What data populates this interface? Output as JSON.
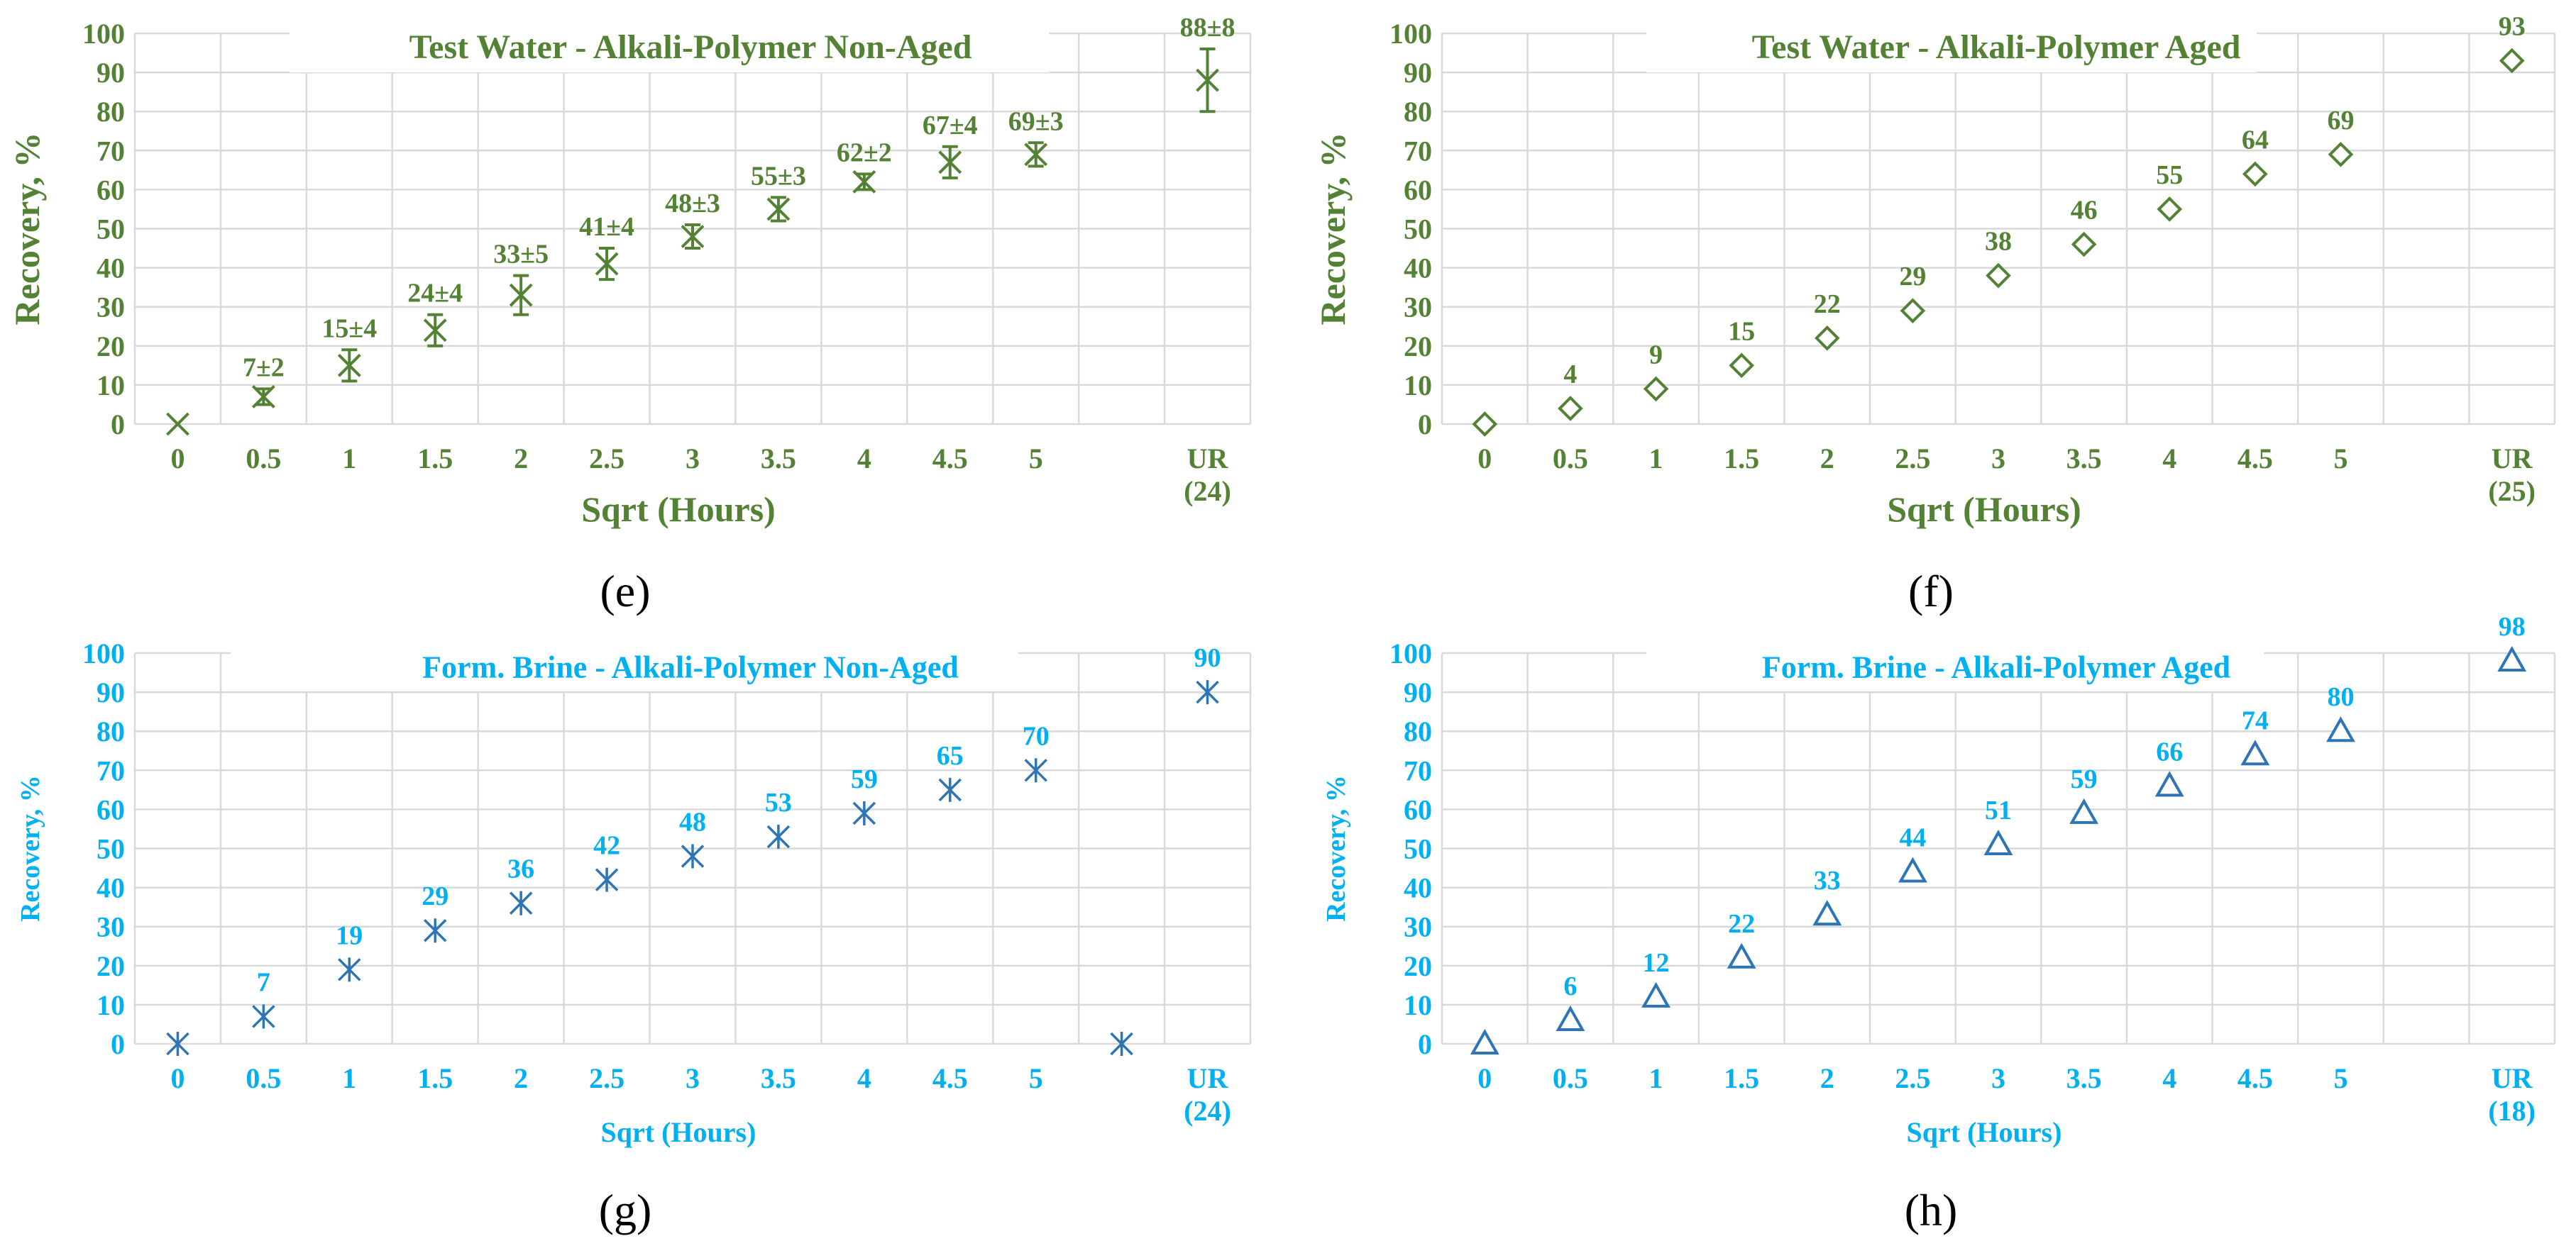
{
  "colors": {
    "green": "#548235",
    "blue": "#00B0F0",
    "blue_marker": "#2E75B6",
    "grid": "#D9D9D9"
  },
  "chart_data": [
    {
      "id": "e",
      "panel_label": "(e)",
      "type": "scatter",
      "title": "Test Water - Alkali-Polymer Non-Aged",
      "xlabel": "Sqrt (Hours)",
      "ylabel": "Recovery, %",
      "ylim": [
        0,
        100
      ],
      "ytick_step": 10,
      "color": "green",
      "marker": "x-errorbar",
      "categories": [
        "0",
        "0.5",
        "1",
        "1.5",
        "2",
        "2.5",
        "3",
        "3.5",
        "4",
        "4.5",
        "5",
        "",
        "UR (24)"
      ],
      "points": [
        {
          "cat": 0,
          "y": 0,
          "err": 0,
          "label": ""
        },
        {
          "cat": 1,
          "y": 7,
          "err": 2,
          "label": "7±2"
        },
        {
          "cat": 2,
          "y": 15,
          "err": 4,
          "label": "15±4"
        },
        {
          "cat": 3,
          "y": 24,
          "err": 4,
          "label": "24±4"
        },
        {
          "cat": 4,
          "y": 33,
          "err": 5,
          "label": "33±5"
        },
        {
          "cat": 5,
          "y": 41,
          "err": 4,
          "label": "41±4"
        },
        {
          "cat": 6,
          "y": 48,
          "err": 3,
          "label": "48±3"
        },
        {
          "cat": 7,
          "y": 55,
          "err": 3,
          "label": "55±3"
        },
        {
          "cat": 8,
          "y": 62,
          "err": 2,
          "label": "62±2"
        },
        {
          "cat": 9,
          "y": 67,
          "err": 4,
          "label": "67±4"
        },
        {
          "cat": 10,
          "y": 69,
          "err": 3,
          "label": "69±3"
        },
        {
          "cat": 12,
          "y": 88,
          "err": 8,
          "label": "88±8"
        }
      ]
    },
    {
      "id": "f",
      "panel_label": "(f)",
      "type": "scatter",
      "title": "Test Water - Alkali-Polymer Aged",
      "xlabel": "Sqrt (Hours)",
      "ylabel": "Recovery, %",
      "ylim": [
        0,
        100
      ],
      "ytick_step": 10,
      "color": "green",
      "marker": "diamond",
      "categories": [
        "0",
        "0.5",
        "1",
        "1.5",
        "2",
        "2.5",
        "3",
        "3.5",
        "4",
        "4.5",
        "5",
        "",
        "UR (25)"
      ],
      "points": [
        {
          "cat": 0,
          "y": 0,
          "label": ""
        },
        {
          "cat": 1,
          "y": 4,
          "label": "4"
        },
        {
          "cat": 2,
          "y": 9,
          "label": "9"
        },
        {
          "cat": 3,
          "y": 15,
          "label": "15"
        },
        {
          "cat": 4,
          "y": 22,
          "label": "22"
        },
        {
          "cat": 5,
          "y": 29,
          "label": "29"
        },
        {
          "cat": 6,
          "y": 38,
          "label": "38"
        },
        {
          "cat": 7,
          "y": 46,
          "label": "46"
        },
        {
          "cat": 8,
          "y": 55,
          "label": "55"
        },
        {
          "cat": 9,
          "y": 64,
          "label": "64"
        },
        {
          "cat": 10,
          "y": 69,
          "label": "69"
        },
        {
          "cat": 12,
          "y": 93,
          "label": "93"
        }
      ]
    },
    {
      "id": "g",
      "panel_label": "(g)",
      "type": "scatter",
      "title": "Form. Brine - Alkali-Polymer Non-Aged",
      "xlabel": "Sqrt (Hours)",
      "ylabel": "Recovery, %",
      "ylim": [
        0,
        100
      ],
      "ytick_step": 10,
      "color": "blue",
      "marker": "asterisk",
      "categories": [
        "0",
        "0.5",
        "1",
        "1.5",
        "2",
        "2.5",
        "3",
        "3.5",
        "4",
        "4.5",
        "5",
        "",
        "UR (24)"
      ],
      "points": [
        {
          "cat": 0,
          "y": 0,
          "label": ""
        },
        {
          "cat": 1,
          "y": 7,
          "label": "7"
        },
        {
          "cat": 2,
          "y": 19,
          "label": "19"
        },
        {
          "cat": 3,
          "y": 29,
          "label": "29"
        },
        {
          "cat": 4,
          "y": 36,
          "label": "36"
        },
        {
          "cat": 5,
          "y": 42,
          "label": "42"
        },
        {
          "cat": 6,
          "y": 48,
          "label": "48"
        },
        {
          "cat": 7,
          "y": 53,
          "label": "53"
        },
        {
          "cat": 8,
          "y": 59,
          "label": "59"
        },
        {
          "cat": 9,
          "y": 65,
          "label": "65"
        },
        {
          "cat": 10,
          "y": 70,
          "label": "70"
        },
        {
          "cat": 11,
          "y": 0,
          "label": ""
        },
        {
          "cat": 12,
          "y": 90,
          "label": "90"
        }
      ]
    },
    {
      "id": "h",
      "panel_label": "(h)",
      "type": "scatter",
      "title": "Form. Brine - Alkali-Polymer Aged",
      "xlabel": "Sqrt (Hours)",
      "ylabel": "Recovery, %",
      "ylim": [
        0,
        100
      ],
      "ytick_step": 10,
      "color": "blue",
      "marker": "triangle",
      "categories": [
        "0",
        "0.5",
        "1",
        "1.5",
        "2",
        "2.5",
        "3",
        "3.5",
        "4",
        "4.5",
        "5",
        "",
        "UR (18)"
      ],
      "points": [
        {
          "cat": 0,
          "y": 0,
          "label": ""
        },
        {
          "cat": 1,
          "y": 6,
          "label": "6"
        },
        {
          "cat": 2,
          "y": 12,
          "label": "12"
        },
        {
          "cat": 3,
          "y": 22,
          "label": "22"
        },
        {
          "cat": 4,
          "y": 33,
          "label": "33"
        },
        {
          "cat": 5,
          "y": 44,
          "label": "44"
        },
        {
          "cat": 6,
          "y": 51,
          "label": "51"
        },
        {
          "cat": 7,
          "y": 59,
          "label": "59"
        },
        {
          "cat": 8,
          "y": 66,
          "label": "66"
        },
        {
          "cat": 9,
          "y": 74,
          "label": "74"
        },
        {
          "cat": 10,
          "y": 80,
          "label": "80"
        },
        {
          "cat": 12,
          "y": 98,
          "label": "98"
        }
      ]
    }
  ]
}
